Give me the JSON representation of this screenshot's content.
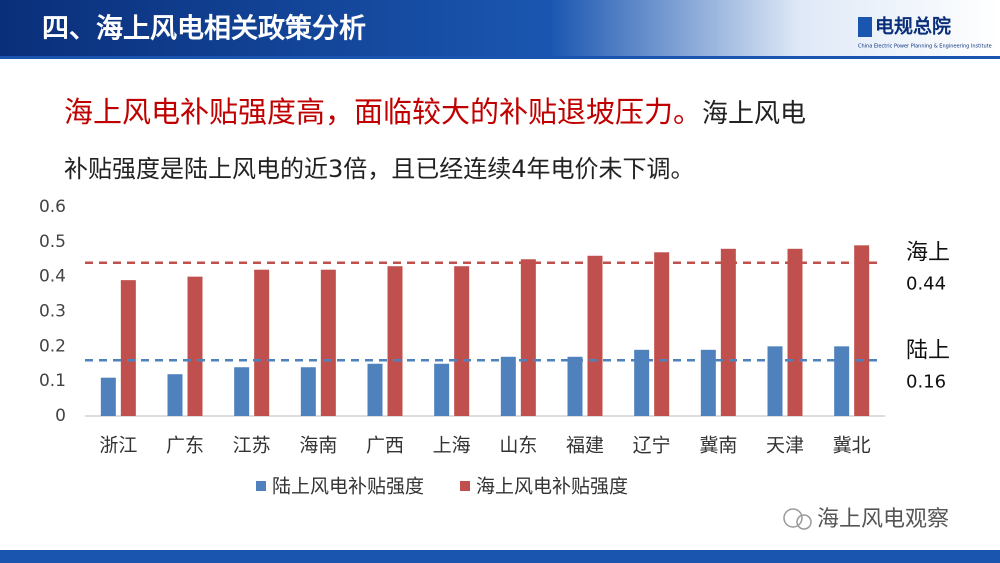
{
  "header": {
    "title": "四、海上风电相关政策分析",
    "logo": "电规总院",
    "logo_subtitle": "China Electric Power Planning & Engineering Institute"
  },
  "headline": {
    "emphasis": "海上风电补贴强度高，面临较大的补贴退坡压力。",
    "line1_rest": "海上风电",
    "line2": "补贴强度是陆上风电的近3倍，且已经连续4年电价未下调。"
  },
  "watermark": "海上风电观察",
  "chart_data": {
    "type": "bar",
    "categories": [
      "浙江",
      "广东",
      "江苏",
      "海南",
      "广西",
      "上海",
      "山东",
      "福建",
      "辽宁",
      "冀南",
      "天津",
      "冀北"
    ],
    "series": [
      {
        "name": "陆上风电补贴强度",
        "color": "#4f81bd",
        "values": [
          0.11,
          0.12,
          0.14,
          0.14,
          0.15,
          0.15,
          0.17,
          0.17,
          0.19,
          0.19,
          0.2,
          0.2
        ]
      },
      {
        "name": "海上风电补贴强度",
        "color": "#c0504d",
        "values": [
          0.39,
          0.4,
          0.42,
          0.42,
          0.43,
          0.43,
          0.45,
          0.46,
          0.47,
          0.48,
          0.48,
          0.49
        ]
      }
    ],
    "ylim": [
      0,
      0.6
    ],
    "yticks": [
      0,
      0.1,
      0.2,
      0.3,
      0.4,
      0.5,
      0.6
    ],
    "grid": false,
    "legend": "bottom",
    "reference_lines": [
      {
        "label": "海上",
        "value": 0.44,
        "color": "#c0504d"
      },
      {
        "label": "陆上",
        "value": 0.16,
        "color": "#4f81bd"
      }
    ]
  }
}
